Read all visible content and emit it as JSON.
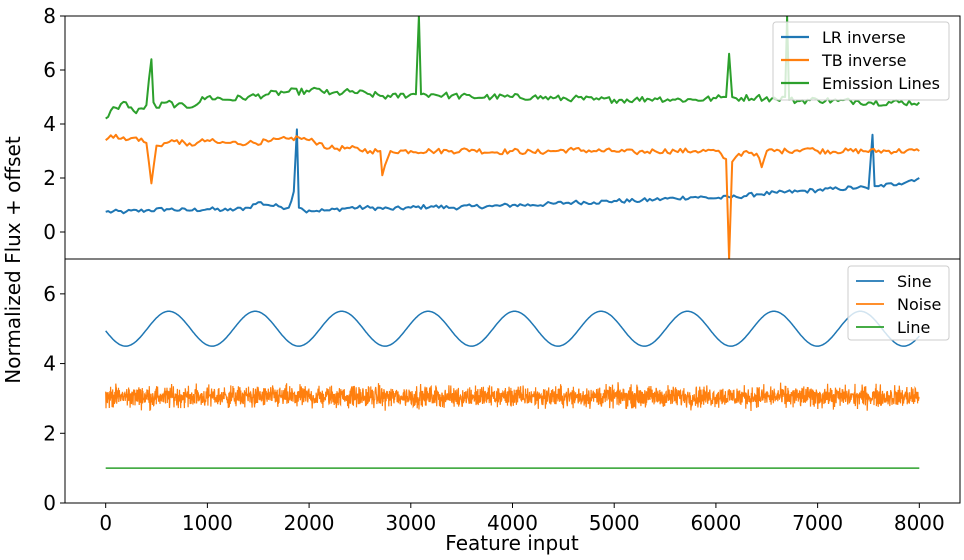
{
  "figure": {
    "ylabel": "Normalized Flux + offset",
    "xlabel": "Feature input"
  },
  "chart_data": [
    {
      "type": "line",
      "xlim": [
        -400,
        8400
      ],
      "ylim": [
        -1,
        8
      ],
      "xticks": [
        0,
        1000,
        2000,
        3000,
        4000,
        5000,
        6000,
        7000,
        8000
      ],
      "xtick_labels": [
        "0",
        "1000",
        "2000",
        "3000",
        "4000",
        "5000",
        "6000",
        "7000",
        "8000"
      ],
      "yticks": [
        0,
        2,
        4,
        6,
        8
      ],
      "ytick_labels": [
        "0",
        "2",
        "4",
        "6",
        "8"
      ],
      "legend_position": "top-right",
      "series": [
        {
          "name": "LR inverse",
          "color": "#1f77b4",
          "x": [
            0,
            200,
            400,
            600,
            800,
            1000,
            1200,
            1400,
            1500,
            1600,
            1700,
            1800,
            1850,
            1880,
            1900,
            1950,
            2000,
            2200,
            2400,
            2600,
            2800,
            3000,
            3200,
            3400,
            3600,
            3800,
            4000,
            4200,
            4400,
            4600,
            4800,
            5000,
            5200,
            5400,
            5600,
            5800,
            6000,
            6200,
            6400,
            6600,
            6800,
            7000,
            7200,
            7400,
            7500,
            7540,
            7560,
            7600,
            7800,
            8000
          ],
          "y": [
            0.75,
            0.75,
            0.8,
            0.85,
            0.8,
            0.85,
            0.8,
            0.9,
            1.1,
            1.0,
            0.95,
            0.9,
            1.5,
            3.8,
            0.9,
            0.8,
            0.8,
            0.8,
            0.9,
            0.9,
            0.85,
            0.9,
            0.95,
            0.9,
            0.95,
            0.95,
            1.0,
            1.0,
            1.05,
            1.1,
            1.1,
            1.15,
            1.15,
            1.2,
            1.25,
            1.3,
            1.25,
            1.3,
            1.4,
            1.45,
            1.5,
            1.55,
            1.6,
            1.65,
            1.6,
            3.6,
            1.7,
            1.7,
            1.8,
            2.0
          ]
        },
        {
          "name": "TB inverse",
          "color": "#ff7f0e",
          "x": [
            0,
            100,
            200,
            300,
            400,
            450,
            500,
            600,
            700,
            800,
            900,
            1000,
            1100,
            1200,
            1400,
            1600,
            1800,
            1900,
            2000,
            2100,
            2200,
            2400,
            2600,
            2700,
            2720,
            2800,
            3000,
            3200,
            3400,
            3600,
            3800,
            4000,
            4200,
            4400,
            4600,
            4800,
            5000,
            5200,
            5400,
            5600,
            5800,
            6000,
            6100,
            6130,
            6160,
            6200,
            6300,
            6400,
            6450,
            6500,
            6700,
            6900,
            7000,
            8000
          ],
          "y": [
            3.4,
            3.6,
            3.4,
            3.5,
            3.3,
            1.8,
            3.2,
            3.3,
            3.4,
            3.2,
            3.3,
            3.4,
            3.3,
            3.3,
            3.3,
            3.35,
            3.45,
            3.5,
            3.4,
            3.3,
            3.1,
            3.1,
            3.0,
            3.0,
            2.1,
            3.0,
            3.0,
            3.0,
            3.0,
            3.05,
            2.95,
            3.0,
            2.95,
            3.0,
            3.05,
            3.0,
            3.0,
            2.95,
            3.0,
            3.0,
            3.0,
            3.0,
            2.7,
            -1.0,
            2.6,
            2.8,
            3.0,
            2.9,
            2.4,
            3.0,
            3.0,
            3.1,
            3.0,
            3.0
          ]
        },
        {
          "name": "Emission Lines",
          "color": "#2ca02c",
          "x": [
            0,
            50,
            100,
            200,
            300,
            400,
            450,
            470,
            500,
            600,
            700,
            800,
            1000,
            1200,
            1400,
            1600,
            1800,
            2000,
            2100,
            2200,
            2400,
            2600,
            2800,
            3000,
            3050,
            3080,
            3100,
            3200,
            3400,
            3600,
            3800,
            4000,
            4200,
            4400,
            4600,
            4800,
            5000,
            5200,
            5400,
            5600,
            5800,
            6000,
            6100,
            6130,
            6160,
            6200,
            6400,
            6600,
            6680,
            6700,
            6720,
            6800,
            7000,
            7200,
            7400,
            7500,
            8000
          ],
          "y": [
            4.2,
            4.5,
            4.6,
            4.8,
            4.4,
            4.7,
            6.4,
            4.8,
            4.6,
            4.8,
            4.7,
            4.6,
            5.0,
            4.9,
            5.0,
            5.1,
            5.2,
            5.2,
            5.3,
            5.1,
            5.2,
            5.1,
            5.0,
            5.1,
            5.1,
            8.0,
            5.1,
            5.1,
            5.05,
            5.0,
            5.0,
            5.0,
            5.0,
            4.95,
            4.95,
            4.9,
            4.9,
            4.9,
            4.95,
            4.9,
            4.9,
            4.95,
            5.0,
            6.6,
            5.0,
            4.95,
            5.0,
            4.9,
            5.0,
            8.0,
            4.9,
            4.85,
            4.9,
            4.85,
            4.85,
            4.8,
            4.8
          ]
        }
      ]
    },
    {
      "type": "line",
      "xlim": [
        -400,
        8400
      ],
      "ylim": [
        0,
        7
      ],
      "xticks": [
        0,
        1000,
        2000,
        3000,
        4000,
        5000,
        6000,
        7000,
        8000
      ],
      "xtick_labels": [
        "0",
        "1000",
        "2000",
        "3000",
        "4000",
        "5000",
        "6000",
        "7000",
        "8000"
      ],
      "yticks": [
        0,
        2,
        4,
        6
      ],
      "ytick_labels": [
        "0",
        "2",
        "4",
        "6"
      ],
      "legend_position": "top-right",
      "series": [
        {
          "name": "Sine",
          "color": "#1f77b4",
          "function": "5 + 0.5*sin(2*pi*x/850 + 0.12)",
          "x_range": [
            0,
            8000
          ],
          "period": 850,
          "amplitude": 0.5,
          "offset": 5.0
        },
        {
          "name": "Noise",
          "color": "#ff7f0e",
          "x_range": [
            0,
            8000
          ],
          "mean": 3.05,
          "min": 2.4,
          "max": 3.7
        },
        {
          "name": "Line",
          "color": "#2ca02c",
          "x": [
            0,
            8000
          ],
          "y": [
            1.0,
            1.0
          ]
        }
      ]
    }
  ]
}
